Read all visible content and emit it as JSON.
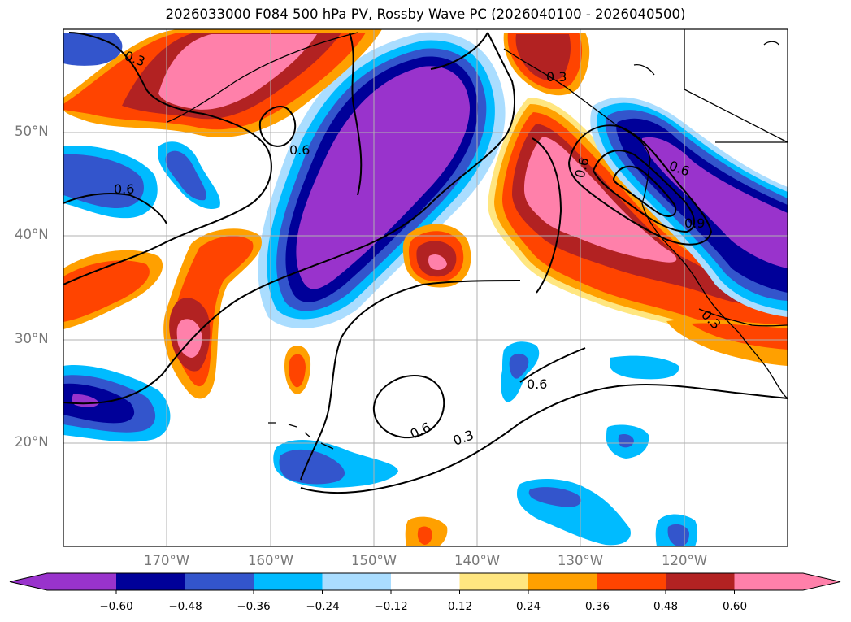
{
  "title": "2026033000 F084 500 hPa PV, Rossby Wave PC (2026040100 - 2026040500)",
  "map": {
    "lat_labels": [
      "50°N",
      "40°N",
      "30°N",
      "20°N"
    ],
    "lon_labels": [
      "170°W",
      "160°W",
      "150°W",
      "140°W",
      "130°W",
      "120°W"
    ],
    "contour_labels": [
      "0.3",
      "0.6",
      "0.6",
      "0.6",
      "0.6",
      "0.6",
      "0.6",
      "0.3",
      "0.9",
      "0.3",
      "0.3"
    ]
  },
  "colorbar": {
    "ticks": [
      "−0.60",
      "−0.48",
      "−0.36",
      "−0.24",
      "−0.12",
      "0.12",
      "0.24",
      "0.36",
      "0.48",
      "0.60"
    ],
    "colors": [
      "#9933cc",
      "#000099",
      "#3355cc",
      "#00bbff",
      "#aaddff",
      "#ffffff",
      "#ffe680",
      "#ffa000",
      "#ff4400",
      "#b22222",
      "#ff80aa"
    ]
  }
}
